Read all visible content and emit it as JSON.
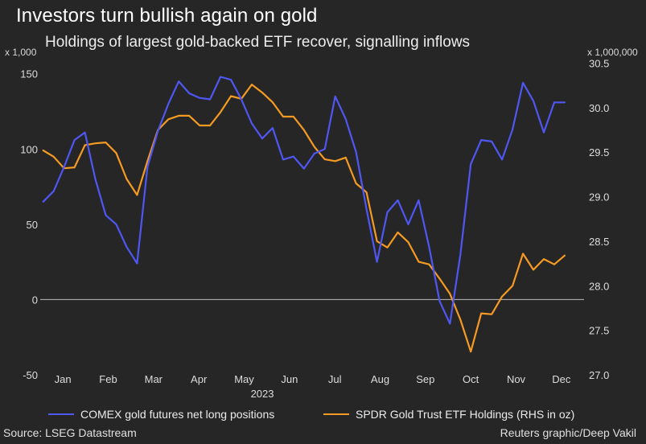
{
  "title": "Investors turn bullish again on gold",
  "subtitle": "Holdings of largest gold-backed ETF recover, signalling inflows",
  "source": "Source: LSEG Datastream",
  "credit": "Reuters graphic/Deep Vakil",
  "colors": {
    "background": "#262626",
    "comex": "#4f57f2",
    "spdr": "#f59a23",
    "zero_line": "#bdbdbd",
    "axis_text": "#dddddd"
  },
  "chart_data": {
    "type": "line",
    "xlabel": "2023",
    "months": [
      "Jan",
      "Feb",
      "Mar",
      "Apr",
      "May",
      "Jun",
      "Jul",
      "Aug",
      "Sep",
      "Oct",
      "Nov",
      "Dec"
    ],
    "left_axis": {
      "multiplier_label": "x 1,000",
      "ylim": [
        -50,
        160
      ],
      "ticks": [
        -50,
        0,
        50,
        100,
        150
      ]
    },
    "right_axis": {
      "multiplier_label": "x 1,000,000",
      "ylim": [
        27.0,
        30.55
      ],
      "ticks": [
        "27.0",
        "27.5",
        "28.0",
        "28.5",
        "29.0",
        "29.5",
        "30.0",
        "30.5"
      ]
    },
    "series": [
      {
        "name": "COMEX gold futures net long positions",
        "axis": "left",
        "color": "#4f57f2",
        "x": [
          "2023-01-03",
          "2023-01-10",
          "2023-01-17",
          "2023-01-24",
          "2023-01-31",
          "2023-02-07",
          "2023-02-14",
          "2023-02-21",
          "2023-02-28",
          "2023-03-07",
          "2023-03-14",
          "2023-03-21",
          "2023-03-28",
          "2023-04-04",
          "2023-04-11",
          "2023-04-18",
          "2023-04-25",
          "2023-05-02",
          "2023-05-09",
          "2023-05-16",
          "2023-05-23",
          "2023-05-30",
          "2023-06-06",
          "2023-06-13",
          "2023-06-20",
          "2023-06-27",
          "2023-07-04",
          "2023-07-11",
          "2023-07-18",
          "2023-07-25",
          "2023-08-01",
          "2023-08-08",
          "2023-08-15",
          "2023-08-22",
          "2023-08-29",
          "2023-09-05",
          "2023-09-12",
          "2023-09-19",
          "2023-09-26",
          "2023-10-03",
          "2023-10-10",
          "2023-10-17",
          "2023-10-24",
          "2023-10-31",
          "2023-11-07",
          "2023-11-14",
          "2023-11-21",
          "2023-11-28",
          "2023-12-05",
          "2023-12-12",
          "2023-12-19"
        ],
        "values": [
          65,
          72,
          88,
          106,
          111,
          80,
          56,
          50,
          35,
          24,
          88,
          112,
          130,
          145,
          137,
          134,
          133,
          148,
          146,
          133,
          117,
          107,
          114,
          93,
          95,
          87,
          97,
          100,
          135,
          120,
          98,
          60,
          25,
          58,
          66,
          50,
          66,
          35,
          -1,
          -16,
          30,
          90,
          106,
          105,
          93,
          113,
          144,
          132,
          111,
          131,
          131
        ]
      },
      {
        "name": "SPDR Gold Trust ETF Holdings (RHS in oz)",
        "axis": "right",
        "color": "#f59a23",
        "x": [
          "2023-01-03",
          "2023-01-10",
          "2023-01-17",
          "2023-01-24",
          "2023-01-31",
          "2023-02-07",
          "2023-02-14",
          "2023-02-21",
          "2023-02-28",
          "2023-03-07",
          "2023-03-14",
          "2023-03-21",
          "2023-03-28",
          "2023-04-04",
          "2023-04-11",
          "2023-04-18",
          "2023-04-25",
          "2023-05-02",
          "2023-05-09",
          "2023-05-16",
          "2023-05-23",
          "2023-05-30",
          "2023-06-06",
          "2023-06-13",
          "2023-06-20",
          "2023-06-27",
          "2023-07-04",
          "2023-07-11",
          "2023-07-18",
          "2023-07-25",
          "2023-08-01",
          "2023-08-08",
          "2023-08-15",
          "2023-08-22",
          "2023-08-29",
          "2023-09-05",
          "2023-09-12",
          "2023-09-19",
          "2023-09-26",
          "2023-10-03",
          "2023-10-10",
          "2023-10-17",
          "2023-10-24",
          "2023-10-31",
          "2023-11-07",
          "2023-11-14",
          "2023-11-21",
          "2023-11-28",
          "2023-12-05",
          "2023-12-12",
          "2023-12-19"
        ],
        "values": [
          29.52,
          29.45,
          29.32,
          29.33,
          29.58,
          29.6,
          29.61,
          29.49,
          29.2,
          29.02,
          29.4,
          29.75,
          29.87,
          29.91,
          29.91,
          29.8,
          29.8,
          29.95,
          30.13,
          30.1,
          30.26,
          30.17,
          30.06,
          29.9,
          29.9,
          29.75,
          29.56,
          29.42,
          29.4,
          29.44,
          29.15,
          29.05,
          28.5,
          28.43,
          28.6,
          28.49,
          28.27,
          28.24,
          28.08,
          27.91,
          27.62,
          27.26,
          27.69,
          27.68,
          27.88,
          28.0,
          28.36,
          28.18,
          28.3,
          28.24,
          28.34
        ]
      }
    ],
    "grid": false,
    "legend_placement": "bottom"
  }
}
